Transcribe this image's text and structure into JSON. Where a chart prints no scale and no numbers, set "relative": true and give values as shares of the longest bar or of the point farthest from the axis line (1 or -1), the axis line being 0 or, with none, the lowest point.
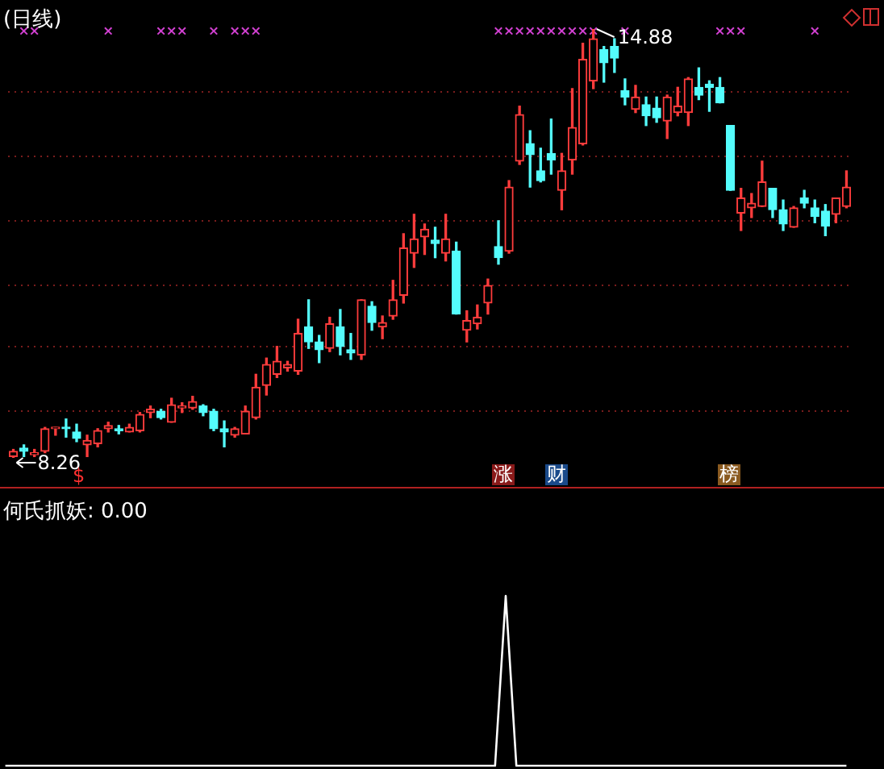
{
  "chart_data": [
    {
      "type": "candlestick",
      "title": "(日线)",
      "categories": [
        null,
        null,
        null,
        null,
        null,
        null,
        null,
        null,
        null,
        null,
        null,
        null,
        null,
        null,
        null,
        null,
        null,
        null,
        null,
        null,
        null,
        null,
        null,
        null,
        null,
        null,
        null,
        null,
        null,
        null,
        null,
        null,
        null,
        null,
        null,
        null,
        null,
        null,
        null,
        null,
        null,
        null,
        null,
        null,
        null,
        null,
        null,
        null,
        null,
        null,
        null,
        null,
        null,
        null,
        null,
        null,
        null,
        null,
        null,
        null,
        null,
        null,
        null,
        null,
        null,
        null,
        null,
        null,
        null,
        null,
        null,
        null,
        null,
        null,
        null,
        null,
        null,
        null,
        null,
        null
      ],
      "ohlc": [
        [
          8.28,
          8.39,
          8.26,
          8.36
        ],
        [
          8.41,
          8.46,
          8.28,
          8.36
        ],
        [
          8.31,
          8.39,
          8.28,
          8.34
        ],
        [
          8.36,
          8.73,
          8.34,
          8.71
        ],
        [
          8.71,
          8.73,
          8.61,
          8.73
        ],
        [
          8.73,
          8.86,
          8.58,
          8.71
        ],
        [
          8.66,
          8.78,
          8.51,
          8.56
        ],
        [
          8.46,
          8.61,
          8.28,
          8.53
        ],
        [
          8.48,
          8.71,
          8.43,
          8.68
        ],
        [
          8.71,
          8.81,
          8.66,
          8.76
        ],
        [
          8.71,
          8.76,
          8.63,
          8.68
        ],
        [
          8.66,
          8.78,
          8.66,
          8.73
        ],
        [
          8.68,
          8.96,
          8.66,
          8.93
        ],
        [
          8.96,
          9.06,
          8.88,
          9.01
        ],
        [
          8.98,
          9.01,
          8.86,
          8.88
        ],
        [
          8.81,
          9.18,
          8.81,
          9.08
        ],
        [
          9.03,
          9.11,
          8.96,
          9.06
        ],
        [
          9.03,
          9.21,
          9.01,
          9.13
        ],
        [
          9.06,
          9.08,
          8.91,
          8.96
        ],
        [
          8.98,
          9.01,
          8.68,
          8.71
        ],
        [
          8.71,
          8.83,
          8.43,
          8.66
        ],
        [
          8.61,
          8.73,
          8.58,
          8.71
        ],
        [
          8.63,
          9.06,
          8.63,
          8.98
        ],
        [
          8.88,
          9.55,
          8.86,
          9.35
        ],
        [
          9.38,
          9.8,
          9.23,
          9.7
        ],
        [
          9.55,
          9.98,
          9.5,
          9.75
        ],
        [
          9.65,
          9.75,
          9.6,
          9.7
        ],
        [
          9.6,
          10.4,
          9.55,
          10.18
        ],
        [
          10.28,
          10.7,
          9.95,
          10.05
        ],
        [
          10.05,
          10.15,
          9.73,
          9.93
        ],
        [
          9.95,
          10.43,
          9.9,
          10.33
        ],
        [
          10.28,
          10.55,
          9.85,
          9.98
        ],
        [
          9.93,
          10.18,
          9.78,
          9.88
        ],
        [
          9.85,
          10.7,
          9.78,
          10.7
        ],
        [
          10.6,
          10.67,
          10.23,
          10.35
        ],
        [
          10.28,
          10.45,
          10.1,
          10.35
        ],
        [
          10.45,
          11.0,
          10.4,
          10.7
        ],
        [
          10.77,
          11.72,
          10.65,
          11.5
        ],
        [
          11.42,
          12.02,
          11.2,
          11.64
        ],
        [
          11.67,
          11.87,
          11.4,
          11.79
        ],
        [
          11.62,
          11.82,
          11.35,
          11.57
        ],
        [
          11.42,
          12.02,
          11.3,
          11.64
        ],
        [
          11.45,
          11.59,
          10.48,
          10.48
        ],
        [
          10.23,
          10.53,
          10.05,
          10.38
        ],
        [
          10.33,
          10.62,
          10.25,
          10.43
        ],
        [
          10.65,
          11.02,
          10.48,
          10.92
        ],
        [
          11.52,
          11.92,
          11.25,
          11.35
        ],
        [
          11.45,
          12.54,
          11.42,
          12.44
        ],
        [
          12.84,
          13.69,
          12.79,
          13.56
        ],
        [
          13.11,
          13.31,
          12.44,
          12.94
        ],
        [
          12.69,
          13.04,
          12.52,
          12.54
        ],
        [
          12.96,
          13.49,
          12.64,
          12.86
        ],
        [
          12.39,
          12.96,
          12.09,
          12.69
        ],
        [
          12.86,
          13.96,
          12.64,
          13.36
        ],
        [
          13.11,
          14.66,
          13.09,
          14.41
        ],
        [
          14.08,
          14.88,
          13.96,
          14.73
        ],
        [
          14.56,
          14.61,
          14.06,
          14.36
        ],
        [
          14.61,
          14.73,
          14.21,
          14.43
        ],
        [
          13.93,
          14.11,
          13.71,
          13.83
        ],
        [
          13.64,
          14.01,
          13.59,
          13.83
        ],
        [
          13.71,
          13.83,
          13.39,
          13.54
        ],
        [
          13.66,
          13.83,
          13.44,
          13.51
        ],
        [
          13.46,
          13.86,
          13.19,
          13.83
        ],
        [
          13.59,
          13.98,
          13.54,
          13.69
        ],
        [
          13.59,
          14.13,
          13.39,
          14.11
        ],
        [
          13.98,
          14.28,
          13.79,
          13.86
        ],
        [
          14.03,
          14.08,
          13.61,
          13.98
        ],
        [
          13.98,
          14.13,
          13.74,
          13.74
        ],
        [
          13.39,
          13.39,
          12.39,
          12.39
        ],
        [
          12.04,
          12.42,
          11.77,
          12.27
        ],
        [
          12.12,
          12.34,
          11.97,
          12.19
        ],
        [
          12.14,
          12.84,
          12.14,
          12.52
        ],
        [
          12.42,
          12.42,
          11.97,
          12.09
        ],
        [
          12.09,
          12.24,
          11.77,
          11.87
        ],
        [
          11.82,
          12.14,
          11.82,
          12.12
        ],
        [
          12.27,
          12.39,
          12.12,
          12.19
        ],
        [
          12.12,
          12.24,
          11.89,
          11.99
        ],
        [
          12.07,
          12.17,
          11.69,
          11.84
        ],
        [
          12.02,
          12.27,
          11.89,
          12.27
        ],
        [
          12.14,
          12.69,
          12.12,
          12.44
        ]
      ],
      "colors": [
        "#ff3c3c",
        "#54fcfc",
        "#ff3c3c",
        "#ff3c3c",
        "#ff3c3c",
        "#54fcfc",
        "#54fcfc",
        "#ff3c3c",
        "#ff3c3c",
        "#ff3c3c",
        "#54fcfc",
        "#ff3c3c",
        "#ff3c3c",
        "#ff3c3c",
        "#54fcfc",
        "#ff3c3c",
        "#ff3c3c",
        "#ff3c3c",
        "#54fcfc",
        "#54fcfc",
        "#54fcfc",
        "#ff3c3c",
        "#ff3c3c",
        "#ff3c3c",
        "#ff3c3c",
        "#ff3c3c",
        "#ff3c3c",
        "#ff3c3c",
        "#54fcfc",
        "#54fcfc",
        "#ff3c3c",
        "#54fcfc",
        "#54fcfc",
        "#ff3c3c",
        "#54fcfc",
        "#ff3c3c",
        "#ff3c3c",
        "#ff3c3c",
        "#ff3c3c",
        "#ff3c3c",
        "#54fcfc",
        "#ff3c3c",
        "#54fcfc",
        "#ff3c3c",
        "#ff3c3c",
        "#ff3c3c",
        "#54fcfc",
        "#ff3c3c",
        "#ff3c3c",
        "#54fcfc",
        "#54fcfc",
        "#54fcfc",
        "#ff3c3c",
        "#ff3c3c",
        "#ff3c3c",
        "#ff3c3c",
        "#54fcfc",
        "#54fcfc",
        "#54fcfc",
        "#ff3c3c",
        "#54fcfc",
        "#54fcfc",
        "#ff3c3c",
        "#ff3c3c",
        "#ff3c3c",
        "#54fcfc",
        "#54fcfc",
        "#54fcfc",
        "#54fcfc",
        "#ff3c3c",
        "#ff3c3c",
        "#ff3c3c",
        "#54fcfc",
        "#54fcfc",
        "#ff3c3c",
        "#54fcfc",
        "#54fcfc",
        "#54fcfc",
        "#ff3c3c",
        "#ff3c3c"
      ],
      "series": [
        {
          "type": "scatter",
          "marker": "cross",
          "color": "#d040d0",
          "values": [
            null,
            14.85,
            14.85,
            null,
            null,
            null,
            null,
            null,
            null,
            14.85,
            null,
            null,
            null,
            null,
            14.85,
            14.85,
            14.85,
            null,
            null,
            14.85,
            null,
            14.85,
            14.85,
            14.85,
            null,
            null,
            null,
            null,
            null,
            null,
            null,
            null,
            null,
            null,
            null,
            null,
            null,
            null,
            null,
            null,
            null,
            null,
            null,
            null,
            null,
            null,
            14.85,
            14.85,
            14.85,
            14.85,
            14.85,
            14.85,
            14.85,
            14.85,
            14.85,
            14.85,
            null,
            null,
            14.85,
            null,
            null,
            null,
            null,
            null,
            null,
            null,
            null,
            14.85,
            14.85,
            14.85,
            null,
            null,
            null,
            null,
            null,
            null,
            14.85,
            null,
            null,
            null
          ]
        }
      ],
      "yticks": [
        {
          "value": 8.98,
          "label": null
        },
        {
          "value": 9.98,
          "label": null
        },
        {
          "value": 10.92,
          "label": null
        },
        {
          "value": 11.92,
          "label": null
        },
        {
          "value": 12.91,
          "label": null
        },
        {
          "value": 13.91,
          "label": null
        }
      ],
      "grid": "y",
      "tick_labels": false,
      "legend": false,
      "annotations": [
        "14.88",
        "8.26",
        "$",
        "涨",
        "财",
        "榜"
      ]
    },
    {
      "type": "line",
      "title": "何氏抓妖: 0.00",
      "relative": true,
      "tick_labels": false,
      "legend": false,
      "categories": [
        null,
        null,
        null,
        null,
        null,
        null,
        null,
        null,
        null,
        null,
        null,
        null,
        null,
        null,
        null,
        null,
        null,
        null,
        null,
        null,
        null,
        null,
        null,
        null,
        null,
        null,
        null,
        null,
        null,
        null,
        null,
        null,
        null,
        null,
        null,
        null,
        null,
        null,
        null,
        null,
        null,
        null,
        null,
        null,
        null,
        null,
        null,
        null,
        null,
        null,
        null,
        null,
        null,
        null,
        null,
        null,
        null,
        null,
        null,
        null,
        null,
        null,
        null,
        null,
        null,
        null,
        null,
        null,
        null,
        null,
        null,
        null,
        null,
        null,
        null,
        null,
        null,
        null,
        null,
        null
      ],
      "series": [
        {
          "color": "#ffffff",
          "values": [
            0,
            0,
            0,
            0,
            0,
            0,
            0,
            0,
            0,
            0,
            0,
            0,
            0,
            0,
            0,
            0,
            0,
            0,
            0,
            0,
            0,
            0,
            0,
            0,
            0,
            0,
            0,
            0,
            0,
            0,
            0,
            0,
            0,
            0,
            0,
            0,
            0,
            0,
            0,
            0,
            0,
            0,
            0,
            0,
            0,
            0,
            0,
            1,
            0,
            0,
            0,
            0,
            0,
            0,
            0,
            0,
            0,
            0,
            0,
            0,
            0,
            0,
            0,
            0,
            0,
            0,
            0,
            0,
            0,
            0,
            0,
            0,
            0,
            0,
            0,
            0,
            0,
            0,
            0,
            0
          ]
        }
      ]
    }
  ]
}
